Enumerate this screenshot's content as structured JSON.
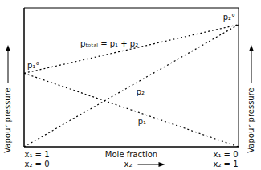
{
  "chart_data": {
    "type": "line",
    "x_label": "Mole fraction",
    "y_label": "Vapour pressure",
    "y2_label": "Vapour pressure",
    "x": [
      0,
      1
    ],
    "series": [
      {
        "name": "pₜₒₜₐₗ = p₁ + p₂",
        "color": "#000000",
        "line_style": "dotted",
        "values": [
          0.53,
          0.88
        ]
      },
      {
        "name": "p₂",
        "color": "#000000",
        "line_style": "dotted",
        "values": [
          0,
          0.88
        ]
      },
      {
        "name": "p₁",
        "color": "#000000",
        "line_style": "dotted",
        "values": [
          0.53,
          0
        ]
      }
    ],
    "xlim": [
      0,
      1
    ],
    "ylim": [
      0,
      1
    ],
    "xticks": [
      0,
      1
    ],
    "yticks": [
      0,
      1
    ],
    "tick_labels": false,
    "grid": false,
    "annotations": {
      "pure_1": "p₁°",
      "pure_2": "p₂°",
      "x_left": [
        "x₁ = 1",
        "x₂ = 0"
      ],
      "x_right": [
        "x₁ = 0",
        "x₂ = 1"
      ],
      "x_direction": "x₂"
    }
  }
}
